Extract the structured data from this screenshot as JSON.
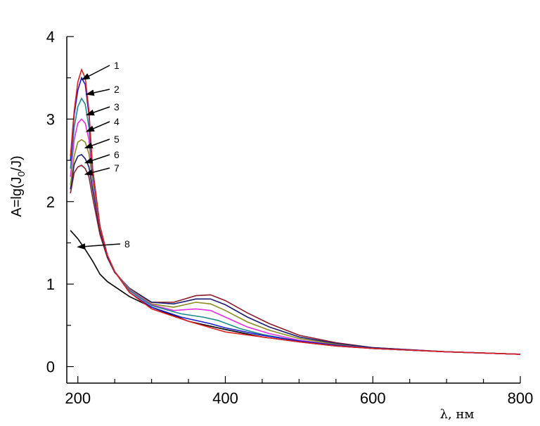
{
  "chart_data": {
    "type": "line",
    "title": "",
    "xlabel": "λ, нм",
    "ylabel_main": "A=lg(J",
    "ylabel_sub": "0",
    "ylabel_tail": "/J)",
    "xlim": [
      185,
      800
    ],
    "ylim": [
      -0.2,
      4.0
    ],
    "x_ticks": [
      200,
      400,
      600,
      800
    ],
    "y_ticks": [
      0,
      1,
      2,
      3,
      4
    ],
    "grid": false,
    "legend": "none",
    "series": [
      {
        "label": "1",
        "color": "#e02020",
        "label_point": [
          206,
          3.48
        ],
        "points": [
          [
            190,
            2.55
          ],
          [
            195,
            3.1
          ],
          [
            200,
            3.45
          ],
          [
            205,
            3.6
          ],
          [
            210,
            3.5
          ],
          [
            215,
            3.1
          ],
          [
            220,
            2.4
          ],
          [
            230,
            1.7
          ],
          [
            240,
            1.35
          ],
          [
            250,
            1.15
          ],
          [
            270,
            0.9
          ],
          [
            300,
            0.7
          ],
          [
            350,
            0.55
          ],
          [
            400,
            0.42
          ],
          [
            450,
            0.36
          ],
          [
            500,
            0.3
          ],
          [
            550,
            0.25
          ],
          [
            600,
            0.22
          ],
          [
            700,
            0.18
          ],
          [
            800,
            0.15
          ]
        ]
      },
      {
        "label": "2",
        "color": "#1a1acc",
        "label_point": [
          212,
          3.3
        ],
        "points": [
          [
            190,
            2.5
          ],
          [
            195,
            3.05
          ],
          [
            200,
            3.35
          ],
          [
            205,
            3.5
          ],
          [
            210,
            3.42
          ],
          [
            215,
            3.05
          ],
          [
            220,
            2.4
          ],
          [
            230,
            1.7
          ],
          [
            240,
            1.35
          ],
          [
            250,
            1.15
          ],
          [
            270,
            0.9
          ],
          [
            300,
            0.72
          ],
          [
            340,
            0.6
          ],
          [
            380,
            0.52
          ],
          [
            400,
            0.47
          ],
          [
            450,
            0.38
          ],
          [
            500,
            0.31
          ],
          [
            550,
            0.26
          ],
          [
            600,
            0.22
          ],
          [
            700,
            0.18
          ],
          [
            800,
            0.15
          ]
        ]
      },
      {
        "label": "3",
        "color": "#1a8a8a",
        "label_point": [
          212,
          3.05
        ],
        "points": [
          [
            190,
            2.4
          ],
          [
            195,
            2.9
          ],
          [
            200,
            3.15
          ],
          [
            205,
            3.25
          ],
          [
            210,
            3.18
          ],
          [
            215,
            2.9
          ],
          [
            220,
            2.35
          ],
          [
            230,
            1.7
          ],
          [
            240,
            1.35
          ],
          [
            250,
            1.15
          ],
          [
            270,
            0.92
          ],
          [
            300,
            0.74
          ],
          [
            340,
            0.64
          ],
          [
            370,
            0.6
          ],
          [
            390,
            0.56
          ],
          [
            420,
            0.46
          ],
          [
            450,
            0.39
          ],
          [
            500,
            0.31
          ],
          [
            550,
            0.26
          ],
          [
            600,
            0.22
          ],
          [
            700,
            0.18
          ],
          [
            800,
            0.15
          ]
        ]
      },
      {
        "label": "4",
        "color": "#e030e0",
        "label_point": [
          212,
          2.85
        ],
        "points": [
          [
            190,
            2.3
          ],
          [
            195,
            2.75
          ],
          [
            200,
            2.95
          ],
          [
            205,
            3.0
          ],
          [
            210,
            2.95
          ],
          [
            215,
            2.75
          ],
          [
            220,
            2.3
          ],
          [
            230,
            1.7
          ],
          [
            240,
            1.35
          ],
          [
            250,
            1.15
          ],
          [
            270,
            0.93
          ],
          [
            300,
            0.75
          ],
          [
            330,
            0.68
          ],
          [
            360,
            0.7
          ],
          [
            380,
            0.68
          ],
          [
            400,
            0.6
          ],
          [
            430,
            0.48
          ],
          [
            460,
            0.4
          ],
          [
            500,
            0.32
          ],
          [
            550,
            0.26
          ],
          [
            600,
            0.22
          ],
          [
            700,
            0.18
          ],
          [
            800,
            0.15
          ]
        ]
      },
      {
        "label": "5",
        "color": "#8a8a20",
        "label_point": [
          210,
          2.65
        ],
        "points": [
          [
            190,
            2.2
          ],
          [
            195,
            2.55
          ],
          [
            200,
            2.72
          ],
          [
            205,
            2.75
          ],
          [
            210,
            2.72
          ],
          [
            215,
            2.58
          ],
          [
            220,
            2.25
          ],
          [
            230,
            1.68
          ],
          [
            240,
            1.35
          ],
          [
            250,
            1.15
          ],
          [
            270,
            0.94
          ],
          [
            300,
            0.76
          ],
          [
            330,
            0.72
          ],
          [
            360,
            0.78
          ],
          [
            380,
            0.76
          ],
          [
            400,
            0.68
          ],
          [
            430,
            0.54
          ],
          [
            460,
            0.44
          ],
          [
            500,
            0.34
          ],
          [
            550,
            0.27
          ],
          [
            600,
            0.22
          ],
          [
            700,
            0.18
          ],
          [
            800,
            0.15
          ]
        ]
      },
      {
        "label": "6",
        "color": "#1a1a70",
        "label_point": [
          210,
          2.47
        ],
        "points": [
          [
            190,
            2.15
          ],
          [
            195,
            2.45
          ],
          [
            200,
            2.55
          ],
          [
            205,
            2.57
          ],
          [
            210,
            2.52
          ],
          [
            215,
            2.42
          ],
          [
            220,
            2.15
          ],
          [
            230,
            1.65
          ],
          [
            240,
            1.33
          ],
          [
            250,
            1.14
          ],
          [
            270,
            0.95
          ],
          [
            300,
            0.78
          ],
          [
            330,
            0.76
          ],
          [
            360,
            0.82
          ],
          [
            380,
            0.82
          ],
          [
            400,
            0.75
          ],
          [
            430,
            0.6
          ],
          [
            460,
            0.48
          ],
          [
            500,
            0.36
          ],
          [
            550,
            0.28
          ],
          [
            600,
            0.23
          ],
          [
            700,
            0.18
          ],
          [
            800,
            0.15
          ]
        ]
      },
      {
        "label": "7",
        "color": "#8a1a2a",
        "label_point": [
          210,
          2.33
        ],
        "points": [
          [
            190,
            2.1
          ],
          [
            195,
            2.35
          ],
          [
            200,
            2.42
          ],
          [
            205,
            2.44
          ],
          [
            210,
            2.4
          ],
          [
            215,
            2.3
          ],
          [
            220,
            2.05
          ],
          [
            230,
            1.6
          ],
          [
            240,
            1.32
          ],
          [
            250,
            1.14
          ],
          [
            270,
            0.95
          ],
          [
            300,
            0.78
          ],
          [
            330,
            0.78
          ],
          [
            360,
            0.86
          ],
          [
            380,
            0.87
          ],
          [
            400,
            0.8
          ],
          [
            430,
            0.65
          ],
          [
            460,
            0.52
          ],
          [
            500,
            0.38
          ],
          [
            550,
            0.29
          ],
          [
            600,
            0.23
          ],
          [
            700,
            0.18
          ],
          [
            800,
            0.15
          ]
        ]
      },
      {
        "label": "8",
        "color": "#000000",
        "label_point": [
          200,
          1.45
        ],
        "points": [
          [
            190,
            1.65
          ],
          [
            200,
            1.55
          ],
          [
            210,
            1.42
          ],
          [
            220,
            1.28
          ],
          [
            230,
            1.12
          ],
          [
            240,
            1.03
          ],
          [
            250,
            0.97
          ],
          [
            270,
            0.85
          ],
          [
            300,
            0.72
          ],
          [
            350,
            0.55
          ],
          [
            400,
            0.45
          ],
          [
            450,
            0.36
          ],
          [
            500,
            0.3
          ],
          [
            550,
            0.25
          ],
          [
            600,
            0.22
          ],
          [
            700,
            0.18
          ],
          [
            800,
            0.15
          ]
        ]
      }
    ]
  }
}
